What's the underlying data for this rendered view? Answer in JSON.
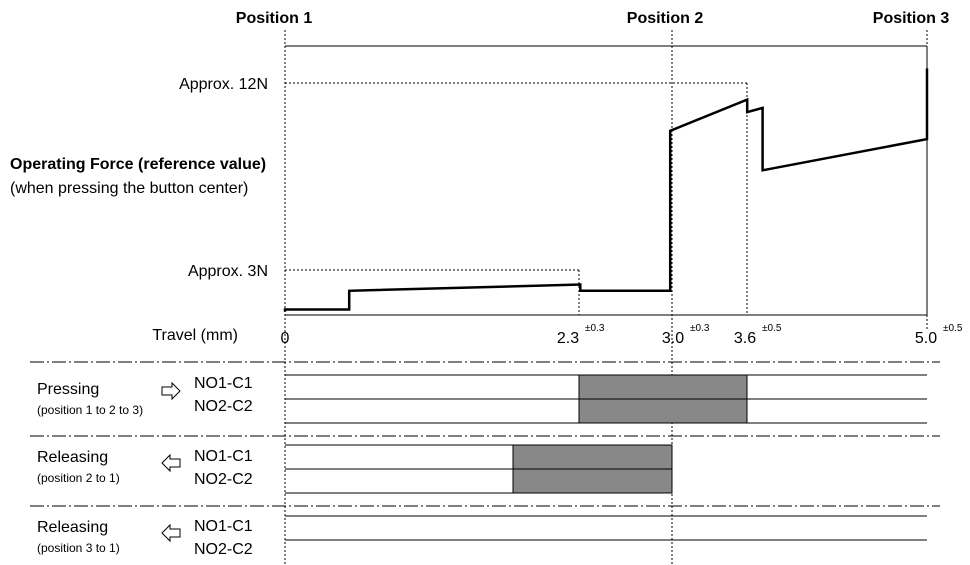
{
  "positions": [
    "Position 1",
    "Position 2",
    "Position 3"
  ],
  "y_axis": {
    "title": "Operating Force (reference value)",
    "subtitle": "(when pressing the button center)",
    "high_label": "Approx. 12N",
    "low_label": "Approx. 3N"
  },
  "x_axis": {
    "label": "Travel (mm)",
    "ticks": [
      {
        "value": "0",
        "tol": ""
      },
      {
        "value": "2.3",
        "tol": "±0.3"
      },
      {
        "value": "3.0",
        "tol": "±0.3"
      },
      {
        "value": "3.6",
        "tol": "±0.5"
      },
      {
        "value": "5.0",
        "tol": "±0.5"
      }
    ]
  },
  "chart_data": {
    "type": "line",
    "xlabel": "Travel (mm)",
    "ylabel": "Operating Force (reference value)",
    "x_range": [
      0,
      5.0
    ],
    "y_reference_levels_N": [
      3,
      12
    ],
    "series": [
      {
        "points_mm_N": [
          [
            0,
            1.0
          ],
          [
            0,
            1.1
          ],
          [
            0.5,
            1.1
          ],
          [
            0.5,
            2.0
          ],
          [
            2.3,
            2.3
          ],
          [
            2.3,
            2.0
          ],
          [
            3.0,
            2.0
          ],
          [
            3.0,
            9.7
          ],
          [
            3.6,
            11.2
          ],
          [
            3.6,
            10.6
          ],
          [
            3.72,
            10.8
          ],
          [
            3.72,
            7.8
          ],
          [
            5.0,
            9.3
          ],
          [
            5.0,
            12.7
          ]
        ]
      }
    ]
  },
  "timing": [
    {
      "action": "Pressing",
      "range": "(position 1 to 2 to 3)",
      "arrow": "right",
      "contacts": [
        "NO1-C1",
        "NO2-C2"
      ],
      "on_from_mm": 2.3,
      "on_to_mm": 3.6
    },
    {
      "action": "Releasing",
      "range": "(position 2 to 1)",
      "arrow": "left",
      "contacts": [
        "NO1-C1",
        "NO2-C2"
      ],
      "on_from_mm": 1.78,
      "on_to_mm": 3.0
    },
    {
      "action": "Releasing",
      "range": "(position 3 to 1)",
      "arrow": "left",
      "contacts": [
        "NO1-C1",
        "NO2-C2"
      ],
      "on_from_mm": null,
      "on_to_mm": null
    }
  ],
  "colors": {
    "ink": "#000000",
    "contact_on_fill": "#888888"
  }
}
